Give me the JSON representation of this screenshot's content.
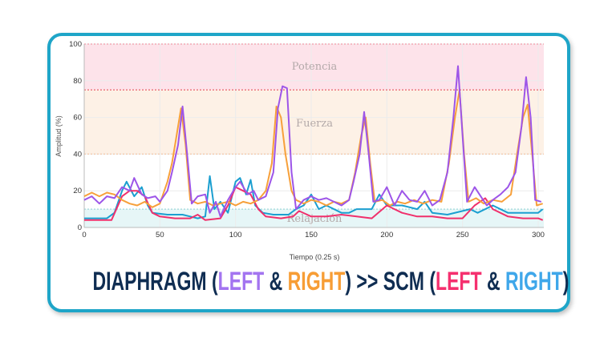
{
  "chart_data": {
    "type": "line",
    "xlabel": "Tiempo (0.25 s)",
    "ylabel": "Amplitud (%)",
    "xlim": [
      0,
      305
    ],
    "ylim": [
      0,
      100
    ],
    "xticks": [
      0,
      50,
      100,
      150,
      200,
      250,
      300
    ],
    "yticks": [
      0,
      20,
      40,
      60,
      80,
      100
    ],
    "zones": [
      {
        "label": "Potencia",
        "from": 75,
        "to": 100,
        "color": "#fde3ea"
      },
      {
        "label": "Fuerza",
        "from": 40,
        "to": 75,
        "color": "#fdf1e6"
      },
      {
        "label": "Relajación",
        "from": 0,
        "to": 10,
        "color": "#e6f6f7"
      }
    ],
    "series": [
      {
        "name": "SCM Right",
        "color": "#1b9fd0",
        "points": [
          [
            0,
            5
          ],
          [
            15,
            5
          ],
          [
            20,
            8
          ],
          [
            25,
            20
          ],
          [
            28,
            25
          ],
          [
            33,
            17
          ],
          [
            38,
            22
          ],
          [
            42,
            12
          ],
          [
            45,
            8
          ],
          [
            55,
            7
          ],
          [
            65,
            7
          ],
          [
            70,
            6
          ],
          [
            75,
            5
          ],
          [
            80,
            6
          ],
          [
            83,
            28
          ],
          [
            86,
            10
          ],
          [
            90,
            14
          ],
          [
            95,
            8
          ],
          [
            100,
            25
          ],
          [
            103,
            27
          ],
          [
            107,
            18
          ],
          [
            110,
            26
          ],
          [
            113,
            12
          ],
          [
            118,
            8
          ],
          [
            125,
            7
          ],
          [
            135,
            7
          ],
          [
            140,
            10
          ],
          [
            145,
            12
          ],
          [
            150,
            18
          ],
          [
            155,
            10
          ],
          [
            160,
            12
          ],
          [
            170,
            8
          ],
          [
            175,
            8
          ],
          [
            180,
            10
          ],
          [
            190,
            10
          ],
          [
            195,
            18
          ],
          [
            200,
            12
          ],
          [
            210,
            12
          ],
          [
            220,
            10
          ],
          [
            225,
            14
          ],
          [
            230,
            8
          ],
          [
            240,
            7
          ],
          [
            255,
            10
          ],
          [
            260,
            8
          ],
          [
            270,
            12
          ],
          [
            280,
            8
          ],
          [
            290,
            8
          ],
          [
            300,
            8
          ],
          [
            303,
            10
          ]
        ]
      },
      {
        "name": "SCM Left",
        "color": "#f0306c",
        "points": [
          [
            0,
            4
          ],
          [
            10,
            4
          ],
          [
            18,
            4
          ],
          [
            25,
            17
          ],
          [
            30,
            20
          ],
          [
            35,
            20
          ],
          [
            40,
            17
          ],
          [
            45,
            8
          ],
          [
            50,
            6
          ],
          [
            60,
            5
          ],
          [
            70,
            5
          ],
          [
            75,
            7
          ],
          [
            80,
            4
          ],
          [
            90,
            5
          ],
          [
            95,
            12
          ],
          [
            100,
            22
          ],
          [
            105,
            20
          ],
          [
            110,
            18
          ],
          [
            115,
            10
          ],
          [
            120,
            6
          ],
          [
            130,
            5
          ],
          [
            138,
            6
          ],
          [
            142,
            9
          ],
          [
            150,
            6
          ],
          [
            160,
            6
          ],
          [
            170,
            7
          ],
          [
            180,
            6
          ],
          [
            190,
            5
          ],
          [
            200,
            12
          ],
          [
            210,
            8
          ],
          [
            220,
            6
          ],
          [
            230,
            6
          ],
          [
            240,
            5
          ],
          [
            250,
            5
          ],
          [
            258,
            12
          ],
          [
            265,
            16
          ],
          [
            270,
            10
          ],
          [
            280,
            6
          ],
          [
            290,
            5
          ],
          [
            300,
            5
          ],
          [
            303,
            4
          ]
        ]
      },
      {
        "name": "Diaphragm Right",
        "color": "#f7a03a",
        "points": [
          [
            0,
            17
          ],
          [
            5,
            19
          ],
          [
            10,
            17
          ],
          [
            15,
            19
          ],
          [
            20,
            18
          ],
          [
            25,
            15
          ],
          [
            30,
            13
          ],
          [
            35,
            12
          ],
          [
            40,
            14
          ],
          [
            45,
            11
          ],
          [
            50,
            13
          ],
          [
            55,
            25
          ],
          [
            58,
            35
          ],
          [
            61,
            50
          ],
          [
            64,
            65
          ],
          [
            67,
            45
          ],
          [
            70,
            15
          ],
          [
            75,
            13
          ],
          [
            80,
            14
          ],
          [
            85,
            12
          ],
          [
            90,
            13
          ],
          [
            95,
            14
          ],
          [
            100,
            12
          ],
          [
            105,
            14
          ],
          [
            110,
            13
          ],
          [
            115,
            15
          ],
          [
            120,
            20
          ],
          [
            124,
            35
          ],
          [
            127,
            66
          ],
          [
            130,
            60
          ],
          [
            133,
            40
          ],
          [
            137,
            20
          ],
          [
            140,
            15
          ],
          [
            145,
            13
          ],
          [
            150,
            15
          ],
          [
            155,
            14
          ],
          [
            160,
            12
          ],
          [
            165,
            14
          ],
          [
            170,
            13
          ],
          [
            175,
            15
          ],
          [
            179,
            30
          ],
          [
            183,
            50
          ],
          [
            186,
            60
          ],
          [
            189,
            35
          ],
          [
            192,
            14
          ],
          [
            197,
            15
          ],
          [
            202,
            12
          ],
          [
            207,
            14
          ],
          [
            212,
            13
          ],
          [
            218,
            15
          ],
          [
            224,
            13
          ],
          [
            230,
            15
          ],
          [
            236,
            14
          ],
          [
            241,
            35
          ],
          [
            245,
            60
          ],
          [
            248,
            75
          ],
          [
            251,
            40
          ],
          [
            254,
            14
          ],
          [
            259,
            16
          ],
          [
            264,
            13
          ],
          [
            270,
            15
          ],
          [
            276,
            14
          ],
          [
            282,
            18
          ],
          [
            286,
            40
          ],
          [
            290,
            60
          ],
          [
            293,
            67
          ],
          [
            296,
            40
          ],
          [
            299,
            12
          ],
          [
            303,
            13
          ]
        ]
      },
      {
        "name": "Diaphragm Left",
        "color": "#9d55e8",
        "points": [
          [
            0,
            15
          ],
          [
            5,
            17
          ],
          [
            10,
            13
          ],
          [
            15,
            17
          ],
          [
            20,
            16
          ],
          [
            25,
            22
          ],
          [
            30,
            20
          ],
          [
            33,
            27
          ],
          [
            38,
            18
          ],
          [
            42,
            16
          ],
          [
            47,
            17
          ],
          [
            50,
            14
          ],
          [
            55,
            20
          ],
          [
            58,
            30
          ],
          [
            62,
            45
          ],
          [
            65,
            66
          ],
          [
            68,
            40
          ],
          [
            71,
            13
          ],
          [
            75,
            17
          ],
          [
            80,
            18
          ],
          [
            83,
            8
          ],
          [
            87,
            14
          ],
          [
            90,
            6
          ],
          [
            95,
            15
          ],
          [
            100,
            22
          ],
          [
            103,
            25
          ],
          [
            108,
            18
          ],
          [
            112,
            20
          ],
          [
            115,
            15
          ],
          [
            120,
            17
          ],
          [
            125,
            30
          ],
          [
            128,
            65
          ],
          [
            131,
            77
          ],
          [
            134,
            76
          ],
          [
            137,
            30
          ],
          [
            140,
            10
          ],
          [
            145,
            15
          ],
          [
            150,
            17
          ],
          [
            155,
            15
          ],
          [
            160,
            16
          ],
          [
            165,
            14
          ],
          [
            170,
            12
          ],
          [
            175,
            15
          ],
          [
            178,
            25
          ],
          [
            182,
            40
          ],
          [
            185,
            63
          ],
          [
            188,
            40
          ],
          [
            191,
            14
          ],
          [
            195,
            15
          ],
          [
            200,
            22
          ],
          [
            205,
            12
          ],
          [
            210,
            20
          ],
          [
            215,
            15
          ],
          [
            220,
            14
          ],
          [
            225,
            20
          ],
          [
            230,
            12
          ],
          [
            235,
            15
          ],
          [
            240,
            30
          ],
          [
            244,
            60
          ],
          [
            247,
            88
          ],
          [
            250,
            50
          ],
          [
            253,
            14
          ],
          [
            258,
            22
          ],
          [
            262,
            17
          ],
          [
            266,
            12
          ],
          [
            270,
            15
          ],
          [
            275,
            18
          ],
          [
            280,
            22
          ],
          [
            285,
            30
          ],
          [
            289,
            55
          ],
          [
            292,
            82
          ],
          [
            295,
            60
          ],
          [
            298,
            15
          ],
          [
            302,
            14
          ]
        ]
      }
    ]
  },
  "title": {
    "part1": "DIAPHRAGM (",
    "left1": "LEFT",
    "amp1": " & ",
    "right1": "RIGHT",
    "part2": ") >> SCM (",
    "left2": "LEFT",
    "amp2": " & ",
    "right2": "RIGHT",
    "part3": ")",
    "colors": {
      "navy": "#0f2d52",
      "left1": "#a374f0",
      "right1": "#f79d35",
      "left2": "#f5306f",
      "right2": "#3fa7ea"
    }
  }
}
